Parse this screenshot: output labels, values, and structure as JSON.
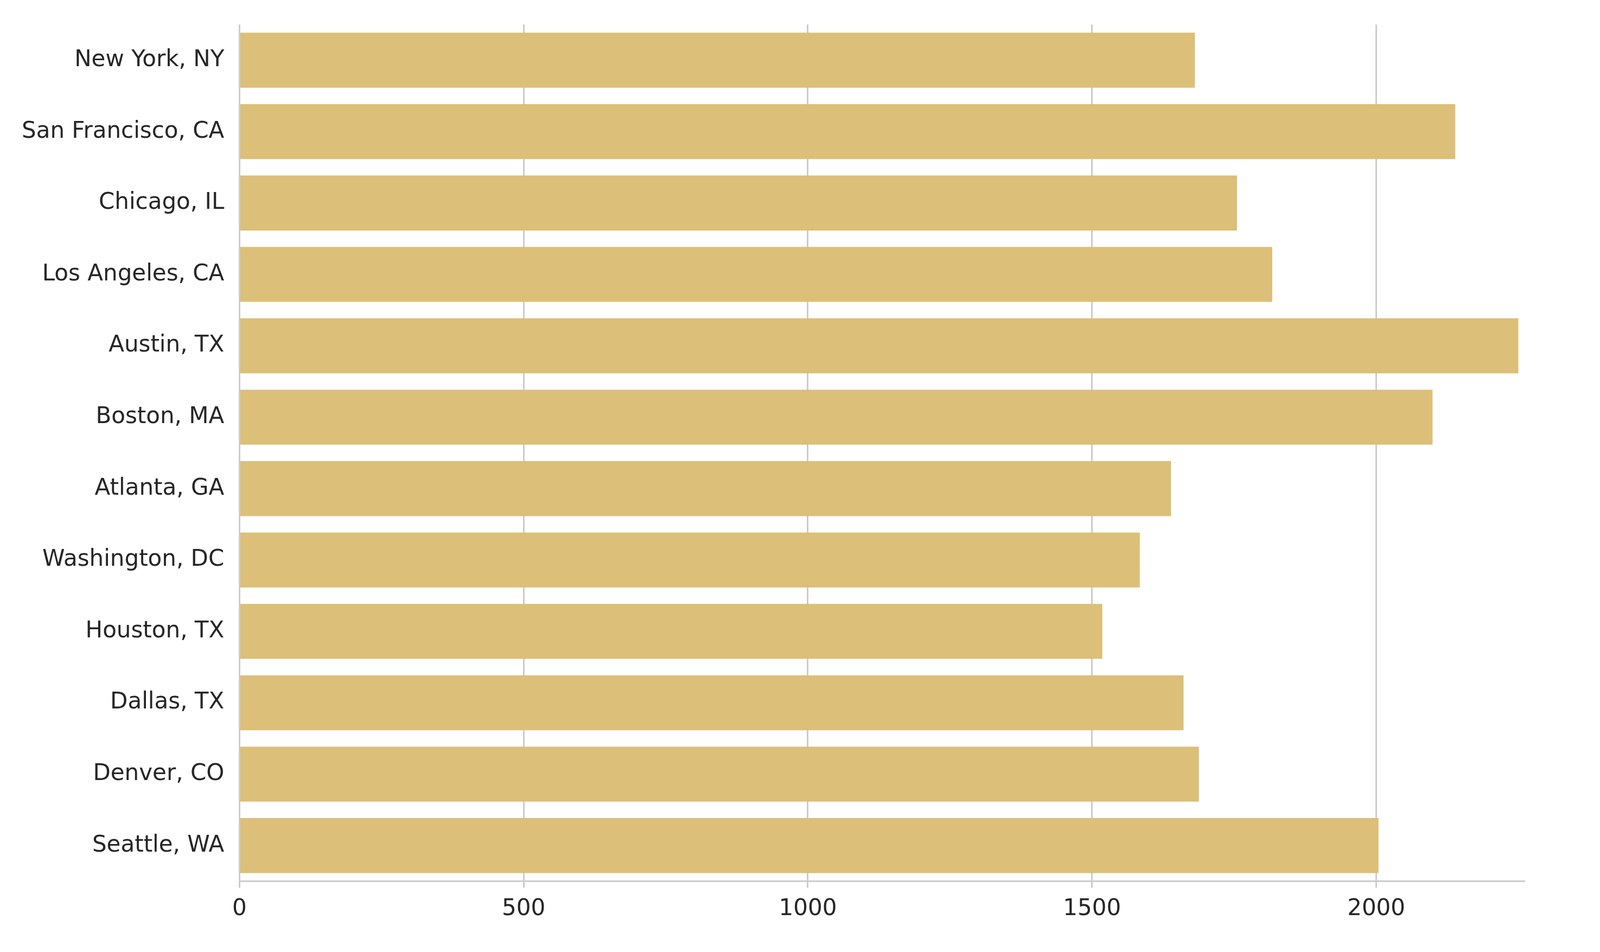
{
  "chart_data": {
    "type": "bar",
    "orientation": "horizontal",
    "categories": [
      "New York, NY",
      "San Francisco, CA",
      "Chicago, IL",
      "Los Angeles, CA",
      "Austin, TX",
      "Boston, MA",
      "Atlanta, GA",
      "Washington, DC",
      "Houston, TX",
      "Dallas, TX",
      "Denver, CO",
      "Seattle, WA"
    ],
    "values": [
      1681,
      2139,
      1755,
      1817,
      2250,
      2099,
      1639,
      1584,
      1518,
      1661,
      1688,
      2004
    ],
    "color": "#dcbf78",
    "xlim": [
      0,
      2260
    ],
    "xticks": [
      0,
      500,
      1000,
      1500,
      2000
    ],
    "grid": true
  }
}
